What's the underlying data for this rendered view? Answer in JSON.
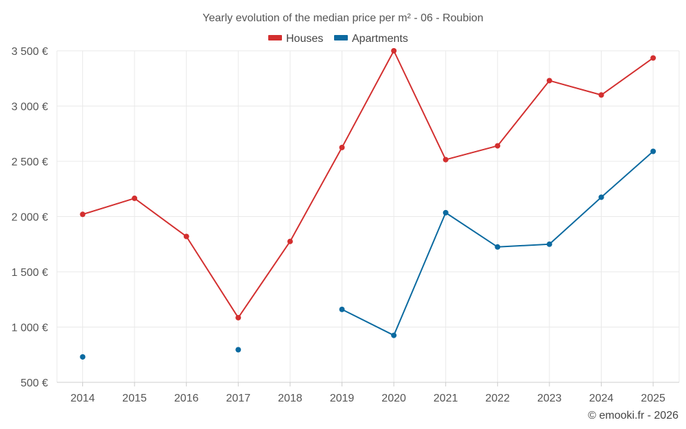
{
  "chart_data": {
    "type": "line",
    "title": "Yearly evolution of the median price per m² - 06 - Roubion",
    "categories": [
      "2014",
      "2015",
      "2016",
      "2017",
      "2018",
      "2019",
      "2020",
      "2021",
      "2022",
      "2023",
      "2024",
      "2025"
    ],
    "series": [
      {
        "name": "Houses",
        "color": "#d32f2f",
        "values": [
          2020,
          2165,
          1820,
          1085,
          1775,
          2625,
          3500,
          2515,
          2640,
          3230,
          3100,
          3435
        ]
      },
      {
        "name": "Apartments",
        "color": "#0b6aa0",
        "values": [
          730,
          null,
          null,
          795,
          null,
          1160,
          925,
          2035,
          1725,
          1750,
          2175,
          2590
        ]
      }
    ],
    "y_ticks": [
      "500 €",
      "1 000 €",
      "1 500 €",
      "2 000 €",
      "2 500 €",
      "3 000 €",
      "3 500 €"
    ],
    "y_tick_values": [
      500,
      1000,
      1500,
      2000,
      2500,
      3000,
      3500
    ],
    "ylim": [
      500,
      3500
    ],
    "xlabel": "",
    "ylabel": "",
    "grid": true,
    "legend_position": "top-center"
  },
  "credit": "© emooki.fr - 2026"
}
